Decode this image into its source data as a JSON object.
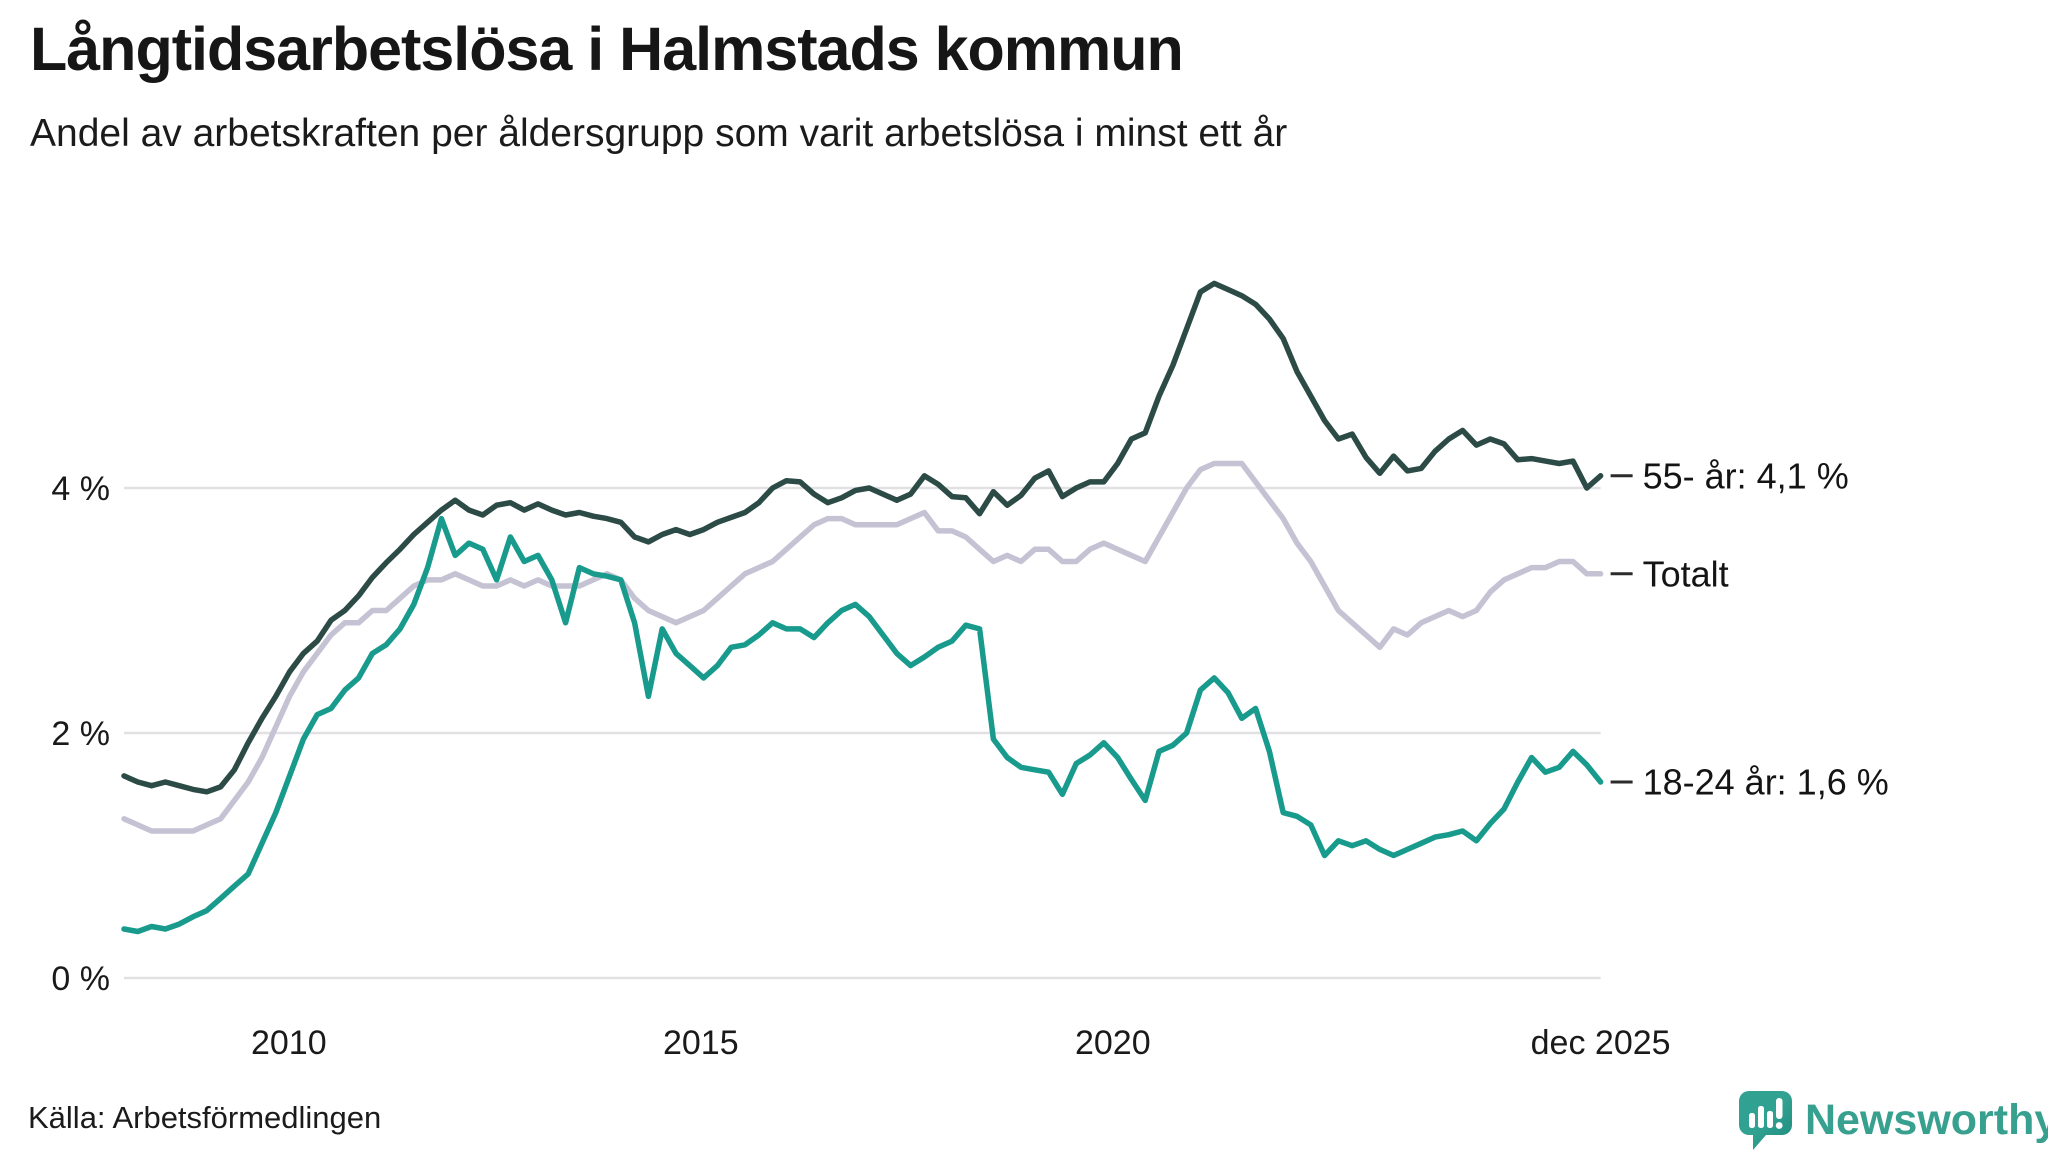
{
  "header": {
    "title": "Långtidsarbetslösa i Halmstads kommun",
    "subtitle": "Andel av arbetskraften per åldersgrupp som varit arbetslösa i minst ett år"
  },
  "source": {
    "label": "Källa: Arbetsförmedlingen"
  },
  "branding": {
    "name": "Newsworthy",
    "icon_color": "#2f9f90",
    "text_color": "#38a08e"
  },
  "colors": {
    "grid": "#e1e1e4",
    "axis_text": "#1a1a1a",
    "annotation_text": "#141414",
    "annotation_dash": "#2b2b2b"
  },
  "chart_data": {
    "type": "line",
    "title": "Långtidsarbetslösa i Halmstads kommun",
    "subtitle": "Andel av arbetskraften per åldersgrupp som varit arbetslösa i minst ett år",
    "unit": "%",
    "x_start": 2008.0,
    "x_end": 2025.92,
    "ylim": [
      0,
      6.3
    ],
    "grid": "horizontal-only",
    "legend_position": "right-end-labels",
    "y_ticks": [
      {
        "value": 0,
        "label": "0 %"
      },
      {
        "value": 2,
        "label": "2 %"
      },
      {
        "value": 4,
        "label": "4 %"
      }
    ],
    "x_ticks": [
      {
        "value": 2010,
        "label": "2010"
      },
      {
        "value": 2015,
        "label": "2015"
      },
      {
        "value": 2020,
        "label": "2020"
      },
      {
        "value": 2025.92,
        "label": "dec 2025"
      }
    ],
    "series": [
      {
        "name": "Totalt",
        "end_label": "Totalt",
        "end_value_label": "",
        "color": "#c4c2d3",
        "values": [
          1.3,
          1.25,
          1.2,
          1.2,
          1.2,
          1.2,
          1.25,
          1.3,
          1.45,
          1.6,
          1.8,
          2.05,
          2.3,
          2.5,
          2.65,
          2.8,
          2.9,
          2.9,
          3.0,
          3.0,
          3.1,
          3.2,
          3.25,
          3.25,
          3.3,
          3.25,
          3.2,
          3.2,
          3.25,
          3.2,
          3.25,
          3.2,
          3.2,
          3.2,
          3.25,
          3.3,
          3.25,
          3.1,
          3.0,
          2.95,
          2.9,
          2.95,
          3.0,
          3.1,
          3.2,
          3.3,
          3.35,
          3.4,
          3.5,
          3.6,
          3.7,
          3.75,
          3.75,
          3.7,
          3.7,
          3.7,
          3.7,
          3.75,
          3.8,
          3.65,
          3.65,
          3.6,
          3.5,
          3.4,
          3.45,
          3.4,
          3.5,
          3.5,
          3.4,
          3.4,
          3.5,
          3.55,
          3.5,
          3.45,
          3.4,
          3.6,
          3.8,
          4.0,
          4.15,
          4.2,
          4.2,
          4.2,
          4.05,
          3.9,
          3.75,
          3.55,
          3.4,
          3.2,
          3.0,
          2.9,
          2.8,
          2.7,
          2.85,
          2.8,
          2.9,
          2.95,
          3.0,
          2.95,
          3.0,
          3.15,
          3.25,
          3.3,
          3.35,
          3.35,
          3.4,
          3.4,
          3.3,
          3.3
        ]
      },
      {
        "name": "55- år",
        "end_label": "55- år: 4,1 %",
        "end_value_label": "4,1 %",
        "color": "#2d4b46",
        "values": [
          1.65,
          1.6,
          1.57,
          1.6,
          1.57,
          1.54,
          1.52,
          1.56,
          1.7,
          1.92,
          2.12,
          2.3,
          2.5,
          2.65,
          2.75,
          2.92,
          3.0,
          3.12,
          3.27,
          3.39,
          3.5,
          3.62,
          3.72,
          3.82,
          3.9,
          3.82,
          3.78,
          3.86,
          3.88,
          3.82,
          3.87,
          3.82,
          3.78,
          3.8,
          3.77,
          3.75,
          3.72,
          3.6,
          3.56,
          3.62,
          3.66,
          3.62,
          3.66,
          3.72,
          3.76,
          3.8,
          3.88,
          4.0,
          4.06,
          4.05,
          3.95,
          3.88,
          3.92,
          3.98,
          4.0,
          3.95,
          3.9,
          3.95,
          4.1,
          4.03,
          3.93,
          3.92,
          3.79,
          3.97,
          3.86,
          3.94,
          4.08,
          4.14,
          3.93,
          4.0,
          4.05,
          4.05,
          4.2,
          4.4,
          4.45,
          4.75,
          5.0,
          5.3,
          5.6,
          5.67,
          5.62,
          5.57,
          5.5,
          5.38,
          5.22,
          4.95,
          4.75,
          4.55,
          4.4,
          4.44,
          4.25,
          4.12,
          4.26,
          4.14,
          4.16,
          4.3,
          4.4,
          4.47,
          4.35,
          4.4,
          4.36,
          4.23,
          4.24,
          4.22,
          4.2,
          4.22,
          4.0,
          4.1
        ]
      },
      {
        "name": "18-24 år",
        "end_label": "18-24 år: 1,6 %",
        "end_value_label": "1,6 %",
        "color": "#189a8c",
        "values": [
          0.4,
          0.38,
          0.42,
          0.4,
          0.44,
          0.5,
          0.55,
          0.65,
          0.75,
          0.85,
          1.1,
          1.35,
          1.65,
          1.95,
          2.15,
          2.2,
          2.35,
          2.45,
          2.65,
          2.72,
          2.85,
          3.05,
          3.35,
          3.75,
          3.45,
          3.55,
          3.5,
          3.25,
          3.6,
          3.4,
          3.45,
          3.25,
          2.9,
          3.35,
          3.3,
          3.28,
          3.25,
          2.9,
          2.3,
          2.85,
          2.65,
          2.55,
          2.45,
          2.55,
          2.7,
          2.72,
          2.8,
          2.9,
          2.85,
          2.85,
          2.78,
          2.9,
          3.0,
          3.05,
          2.95,
          2.8,
          2.65,
          2.55,
          2.62,
          2.7,
          2.75,
          2.88,
          2.85,
          1.95,
          1.8,
          1.72,
          1.7,
          1.68,
          1.5,
          1.75,
          1.82,
          1.92,
          1.8,
          1.62,
          1.45,
          1.85,
          1.9,
          2.0,
          2.35,
          2.45,
          2.33,
          2.12,
          2.2,
          1.85,
          1.35,
          1.32,
          1.25,
          1.0,
          1.12,
          1.08,
          1.12,
          1.05,
          1.0,
          1.05,
          1.1,
          1.15,
          1.17,
          1.2,
          1.12,
          1.26,
          1.38,
          1.6,
          1.8,
          1.68,
          1.72,
          1.85,
          1.74,
          1.6
        ]
      }
    ]
  }
}
